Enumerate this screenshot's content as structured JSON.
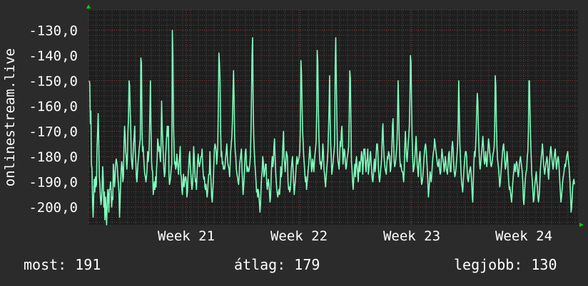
{
  "chart_data": {
    "type": "line",
    "title": "",
    "ylabel": "onlinestream.live",
    "xlabel": "",
    "ylim": [
      -207,
      -122
    ],
    "y_ticks": [
      -130,
      -140,
      -150,
      -160,
      -170,
      -180,
      -190,
      -200
    ],
    "y_tick_labels": [
      "-130,0",
      "-140,0",
      "-150,0",
      "-160,0",
      "-170,0",
      "-180,0",
      "-190,0",
      "-200,0"
    ],
    "x_tick_labels": [
      "Week 21",
      "Week 22",
      "Week 23",
      "Week 24"
    ],
    "grid": true,
    "series": [
      {
        "color": "#7fffbf",
        "values": [
          -150,
          -151,
          -167,
          -162,
          -183,
          -185,
          -198,
          -204,
          -196,
          -189,
          -194,
          -188,
          -192,
          -191,
          -177,
          -170,
          -163,
          -175,
          -188,
          -191,
          -196,
          -199,
          -197,
          -192,
          -184,
          -189,
          -200,
          -194,
          -205,
          -196,
          -201,
          -207,
          -199,
          -193,
          -196,
          -202,
          -193,
          -193,
          -190,
          -194,
          -200,
          -196,
          -197,
          -183,
          -186,
          -192,
          -189,
          -183,
          -181,
          -182,
          -184,
          -188,
          -191,
          -194,
          -204,
          -198,
          -191,
          -185,
          -182,
          -184,
          -190,
          -188,
          -175,
          -168,
          -172,
          -178,
          -180,
          -185,
          -181,
          -170,
          -165,
          -150,
          -152,
          -162,
          -168,
          -180,
          -183,
          -185,
          -180,
          -175,
          -172,
          -168,
          -178,
          -182,
          -188,
          -190,
          -186,
          -182,
          -180,
          -177,
          -175,
          -173,
          -141,
          -143,
          -169,
          -178,
          -176,
          -180,
          -184,
          -187,
          -188,
          -190,
          -188,
          -185,
          -178,
          -182,
          -180,
          -175,
          -163,
          -150,
          -168,
          -182,
          -185,
          -186,
          -195,
          -193,
          -190,
          -193,
          -188,
          -192,
          -185,
          -181,
          -173,
          -175,
          -178,
          -176,
          -180,
          -182,
          -175,
          -158,
          -169,
          -174,
          -180,
          -185,
          -188,
          -186,
          -180,
          -176,
          -172,
          -168,
          -172,
          -168,
          -187,
          -191,
          -190,
          -188,
          -185,
          -183,
          -130,
          -140,
          -167,
          -175,
          -183,
          -182,
          -185,
          -184,
          -179,
          -182,
          -184,
          -187,
          -183,
          -180,
          -176,
          -187,
          -188,
          -193,
          -195,
          -190,
          -187,
          -192,
          -190,
          -188,
          -188,
          -190,
          -196,
          -194,
          -188,
          -185,
          -180,
          -178,
          -184,
          -187,
          -190,
          -193,
          -191,
          -186,
          -176,
          -180,
          -186,
          -190,
          -189,
          -193,
          -187,
          -182,
          -179,
          -182,
          -184,
          -183,
          -182,
          -180,
          -180,
          -177,
          -183,
          -187,
          -189,
          -188,
          -192,
          -193,
          -191,
          -194,
          -196,
          -193,
          -189,
          -187,
          -187,
          -178,
          -186,
          -190,
          -196,
          -198,
          -194,
          -190,
          -183,
          -177,
          -175,
          -176,
          -178,
          -183,
          -180,
          -175,
          -160,
          -139,
          -143,
          -150,
          -170,
          -180,
          -178,
          -183,
          -182,
          -185,
          -184,
          -185,
          -183,
          -180,
          -178,
          -175,
          -180,
          -183,
          -184,
          -185,
          -188,
          -183,
          -178,
          -175,
          -172,
          -166,
          -155,
          -146,
          -158,
          -172,
          -178,
          -180,
          -185,
          -187,
          -188,
          -190,
          -191,
          -188,
          -183,
          -181,
          -179,
          -177,
          -185,
          -190,
          -195,
          -192,
          -188,
          -182,
          -178,
          -177,
          -183,
          -186,
          -184,
          -185,
          -186,
          -185,
          -183,
          -180,
          -170,
          -155,
          -140,
          -133,
          -160,
          -172,
          -178,
          -183,
          -186,
          -190,
          -194,
          -193,
          -196,
          -193,
          -195,
          -198,
          -202,
          -199,
          -193,
          -188,
          -186,
          -180,
          -182,
          -188,
          -187,
          -185,
          -183,
          -183,
          -190,
          -193,
          -191,
          -189,
          -191,
          -194,
          -198,
          -196,
          -188,
          -183,
          -180,
          -184,
          -182,
          -176,
          -173,
          -180,
          -186,
          -190,
          -193,
          -195,
          -196,
          -194,
          -193,
          -195,
          -191,
          -184,
          -188,
          -186,
          -181,
          -175,
          -170,
          -180,
          -183,
          -186,
          -182,
          -178,
          -179,
          -180,
          -190,
          -193,
          -192,
          -194,
          -193,
          -190,
          -185,
          -182,
          -180,
          -185,
          -190,
          -195,
          -192,
          -190,
          -186,
          -182,
          -180,
          -183,
          -182,
          -181,
          -180,
          -178,
          -168,
          -142,
          -147,
          -160,
          -170,
          -175,
          -180,
          -183,
          -187,
          -190,
          -188,
          -193,
          -190,
          -188,
          -185,
          -183,
          -179,
          -176,
          -180,
          -182,
          -186,
          -184,
          -181,
          -183,
          -186,
          -182,
          -179,
          -177,
          -174,
          -163,
          -138,
          -142,
          -160,
          -172,
          -179,
          -183,
          -182,
          -185,
          -183,
          -181,
          -175,
          -178,
          -185,
          -187,
          -190,
          -192,
          -188,
          -185,
          -182,
          -178,
          -170,
          -161,
          -148,
          -165,
          -175,
          -180,
          -187,
          -185,
          -183,
          -180,
          -178,
          -175,
          -145,
          -133,
          -150,
          -165,
          -178,
          -182,
          -183,
          -185,
          -180,
          -174,
          -176,
          -170,
          -168,
          -176,
          -183,
          -180,
          -177,
          -178,
          -182,
          -185,
          -184,
          -181,
          -180,
          -178,
          -176,
          -165,
          -146,
          -149,
          -167,
          -182,
          -185,
          -190,
          -193,
          -189,
          -186,
          -183,
          -188,
          -182,
          -180,
          -184,
          -186,
          -190,
          -184,
          -182,
          -186,
          -183,
          -181,
          -178,
          -180,
          -187,
          -183,
          -177,
          -179,
          -177,
          -183,
          -186,
          -182,
          -181,
          -177,
          -187,
          -185,
          -183,
          -180,
          -178,
          -182,
          -186,
          -189,
          -190,
          -188,
          -183,
          -181,
          -186,
          -184,
          -179,
          -175,
          -175,
          -178,
          -185,
          -188,
          -190,
          -188,
          -185,
          -183,
          -179,
          -170,
          -167,
          -175,
          -180,
          -183,
          -185,
          -186,
          -187,
          -183,
          -180,
          -181,
          -178,
          -179,
          -180,
          -186,
          -185,
          -182,
          -176,
          -168,
          -165,
          -175,
          -182,
          -184,
          -183,
          -181,
          -178,
          -175,
          -165,
          -150,
          -160,
          -172,
          -180,
          -184,
          -183,
          -185,
          -186,
          -186,
          -188,
          -190,
          -185,
          -176,
          -170,
          -175,
          -180,
          -182,
          -178,
          -175,
          -172,
          -168,
          -158,
          -140,
          -143,
          -160,
          -172,
          -180,
          -186,
          -185,
          -183,
          -180,
          -176,
          -172,
          -177,
          -183,
          -185,
          -188,
          -183,
          -180,
          -178,
          -183,
          -188,
          -191,
          -190,
          -188,
          -185,
          -181,
          -178,
          -176,
          -175,
          -177,
          -181,
          -185,
          -190,
          -196,
          -193,
          -190,
          -186,
          -188,
          -190,
          -187,
          -183,
          -180,
          -178,
          -177,
          -173,
          -175,
          -177,
          -179,
          -181,
          -183,
          -184,
          -183,
          -181,
          -185,
          -187,
          -186,
          -181,
          -177,
          -179,
          -181,
          -183,
          -186,
          -184,
          -180,
          -182,
          -185,
          -186,
          -187,
          -183,
          -179,
          -178,
          -183,
          -186,
          -186,
          -181,
          -176,
          -174,
          -177,
          -183,
          -186,
          -188,
          -187,
          -185,
          -182,
          -179,
          -175,
          -166,
          -150,
          -163,
          -175,
          -180,
          -186,
          -190,
          -192,
          -194,
          -190,
          -186,
          -183,
          -180,
          -178,
          -178,
          -180,
          -186,
          -189,
          -190,
          -188,
          -186,
          -185,
          -184,
          -187,
          -190,
          -196,
          -198,
          -190,
          -182,
          -178,
          -180,
          -176,
          -170,
          -161,
          -155,
          -158,
          -169,
          -177,
          -182,
          -185,
          -183,
          -180,
          -178,
          -175,
          -172,
          -176,
          -181,
          -183,
          -181,
          -178,
          -182,
          -184,
          -181,
          -177,
          -173,
          -175,
          -178,
          -180,
          -183,
          -184,
          -183,
          -181,
          -179,
          -178,
          -176,
          -170,
          -148,
          -152,
          -167,
          -176,
          -181,
          -183,
          -185,
          -188,
          -192,
          -190,
          -187,
          -184,
          -181,
          -178,
          -176,
          -175,
          -178,
          -182,
          -185,
          -184,
          -181,
          -178,
          -181,
          -186,
          -190,
          -193,
          -192,
          -194,
          -196,
          -198,
          -195,
          -191,
          -188,
          -186,
          -183,
          -185,
          -186,
          -183,
          -182,
          -183,
          -186,
          -188,
          -186,
          -183,
          -181,
          -180,
          -182,
          -184,
          -186,
          -190,
          -197,
          -199,
          -195,
          -191,
          -188,
          -186,
          -185,
          -180,
          -178,
          -170,
          -150,
          -150,
          -163,
          -173,
          -180,
          -187,
          -190,
          -194,
          -198,
          -197,
          -193,
          -190,
          -188,
          -186,
          -190,
          -192,
          -196,
          -198,
          -196,
          -193,
          -186,
          -183,
          -180,
          -178,
          -175,
          -178,
          -183,
          -185,
          -187,
          -185,
          -183,
          -182,
          -180,
          -182,
          -186,
          -189,
          -185,
          -181,
          -178,
          -176,
          -178,
          -181,
          -183,
          -185,
          -183,
          -180,
          -178,
          -177,
          -182,
          -185,
          -183,
          -181,
          -180,
          -182,
          -186,
          -190,
          -194,
          -198,
          -196,
          -193,
          -190,
          -188,
          -187,
          -185,
          -183,
          -184,
          -182,
          -180,
          -179,
          -178,
          -181,
          -183,
          -186,
          -190,
          -195,
          -202,
          -200,
          -196,
          -192,
          -190,
          -189,
          -191
        ]
      }
    ]
  },
  "footer": {
    "now": "most: 191",
    "avg": "átlag: 179",
    "best": "legjobb: 130"
  },
  "colors": {
    "background": "#2b2b2b",
    "plot_background": "#1e1e1e",
    "line": "#7fffbf",
    "grid_major": "#8a3b3b",
    "grid_minor": "#4a4a4a",
    "axis_arrow": "#00cc00"
  }
}
